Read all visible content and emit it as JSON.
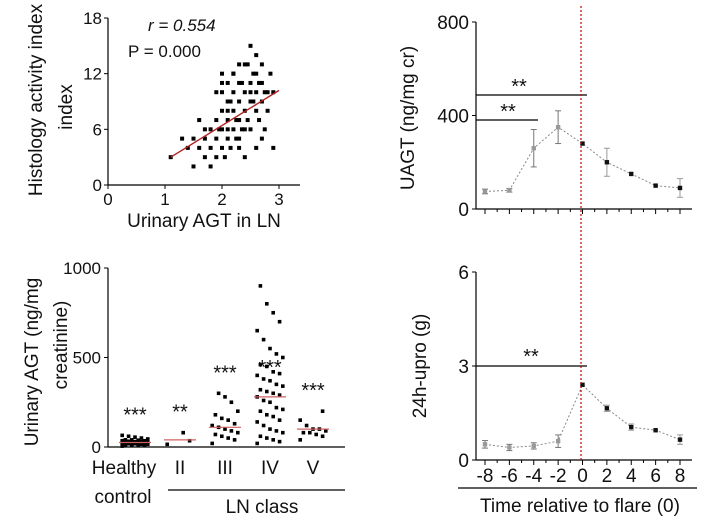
{
  "chart_data": [
    {
      "type": "scatter",
      "ylabel": "Histology activity index",
      "xlabel": "Urinary AGT in LN",
      "xlim": [
        0,
        3.2
      ],
      "ylim": [
        0,
        18
      ],
      "xticks": [
        "0",
        "1",
        "2",
        "3"
      ],
      "yticks": [
        "0",
        "6",
        "12",
        "18"
      ],
      "stat_r": "r = 0.554",
      "stat_p": "P = 0.000",
      "regression": {
        "x1": 1.1,
        "y1": 3,
        "x2": 3.0,
        "y2": 10.2
      },
      "points": [
        [
          1.1,
          3
        ],
        [
          1.3,
          5
        ],
        [
          1.4,
          4
        ],
        [
          1.5,
          2
        ],
        [
          1.5,
          5
        ],
        [
          1.6,
          4
        ],
        [
          1.6,
          7
        ],
        [
          1.7,
          3
        ],
        [
          1.7,
          5
        ],
        [
          1.8,
          4
        ],
        [
          1.8,
          6
        ],
        [
          1.8,
          2
        ],
        [
          1.9,
          5
        ],
        [
          1.9,
          7
        ],
        [
          1.9,
          3
        ],
        [
          2.0,
          6
        ],
        [
          2.0,
          8
        ],
        [
          2.0,
          4
        ],
        [
          2.0,
          10
        ],
        [
          2.0,
          12
        ],
        [
          2.1,
          7
        ],
        [
          2.1,
          5
        ],
        [
          2.1,
          9
        ],
        [
          2.1,
          6
        ],
        [
          2.1,
          11
        ],
        [
          2.15,
          4
        ],
        [
          2.2,
          8
        ],
        [
          2.2,
          6
        ],
        [
          2.2,
          10
        ],
        [
          2.2,
          12
        ],
        [
          2.25,
          7
        ],
        [
          2.3,
          5
        ],
        [
          2.3,
          9
        ],
        [
          2.3,
          7
        ],
        [
          2.3,
          11
        ],
        [
          2.35,
          6
        ],
        [
          2.4,
          8
        ],
        [
          2.4,
          10
        ],
        [
          2.4,
          13
        ],
        [
          2.4,
          3
        ],
        [
          2.45,
          7
        ],
        [
          2.5,
          9
        ],
        [
          2.5,
          11
        ],
        [
          2.5,
          15
        ],
        [
          2.5,
          6
        ],
        [
          2.55,
          12
        ],
        [
          2.6,
          8
        ],
        [
          2.6,
          10
        ],
        [
          2.6,
          14
        ],
        [
          2.6,
          4
        ],
        [
          2.65,
          7
        ],
        [
          2.7,
          9
        ],
        [
          2.7,
          11
        ],
        [
          2.7,
          13
        ],
        [
          2.75,
          6
        ],
        [
          2.8,
          10
        ],
        [
          2.8,
          8
        ],
        [
          2.85,
          12
        ],
        [
          2.9,
          10
        ],
        [
          2.9,
          4
        ],
        [
          1.9,
          10
        ],
        [
          2.0,
          11
        ],
        [
          2.2,
          12
        ],
        [
          2.3,
          13
        ],
        [
          2.1,
          8
        ],
        [
          2.5,
          10
        ],
        [
          2.6,
          12
        ],
        [
          2.7,
          5
        ],
        [
          2.4,
          6
        ],
        [
          2.3,
          4
        ],
        [
          1.7,
          6
        ],
        [
          2.05,
          3
        ],
        [
          2.55,
          9
        ],
        [
          2.65,
          11
        ],
        [
          2.45,
          13
        ],
        [
          2.15,
          9
        ],
        [
          2.35,
          11
        ],
        [
          2.75,
          10
        ],
        [
          1.95,
          6
        ],
        [
          2.25,
          5
        ]
      ]
    },
    {
      "type": "scatter",
      "ylabel_line1": "Urinary AGT (ng/mg",
      "ylabel_line2": "creatinine)",
      "ylim": [
        0,
        1000
      ],
      "yticks": [
        "0",
        "500",
        "1000"
      ],
      "categories": [
        "Healthy",
        "II",
        "III",
        "IV",
        "V"
      ],
      "category_sub": "control",
      "group_label": "LN class",
      "significance": [
        "***",
        "**",
        "***",
        "***",
        "***"
      ],
      "medians": [
        25,
        40,
        110,
        280,
        100
      ],
      "groups": [
        [
          5,
          8,
          10,
          12,
          15,
          18,
          20,
          22,
          25,
          28,
          30,
          32,
          35,
          38,
          40,
          45,
          50,
          55,
          60,
          65,
          20,
          15,
          10,
          30,
          35,
          40,
          25,
          18
        ],
        [
          15,
          35,
          80
        ],
        [
          20,
          40,
          60,
          80,
          100,
          110,
          120,
          150,
          180,
          200,
          250,
          280,
          300,
          90,
          70,
          50,
          130,
          160
        ],
        [
          20,
          40,
          60,
          80,
          100,
          120,
          150,
          180,
          200,
          220,
          250,
          280,
          300,
          320,
          350,
          380,
          400,
          420,
          450,
          500,
          550,
          600,
          650,
          700,
          750,
          800,
          900,
          30,
          50,
          90,
          140,
          170,
          210,
          260,
          290,
          310,
          340,
          370,
          410,
          460,
          520
        ],
        [
          40,
          60,
          80,
          100,
          120,
          150,
          200,
          80,
          100,
          70,
          90
        ]
      ]
    },
    {
      "type": "line",
      "ylabel": "UAGT (ng/mg cr)",
      "ylim": [
        0,
        800
      ],
      "yticks": [
        "0",
        "400",
        "800"
      ],
      "x": [
        -8,
        -6,
        -4,
        -2,
        0,
        2,
        4,
        6,
        8
      ],
      "values": [
        75,
        80,
        260,
        350,
        280,
        200,
        150,
        100,
        90
      ],
      "errors": [
        10,
        8,
        80,
        70,
        0,
        60,
        0,
        0,
        40
      ],
      "significance": [
        "**",
        "**"
      ],
      "vline_x": 0,
      "vline_color": "#c00000"
    },
    {
      "type": "line",
      "ylabel": "24h-upro (g)",
      "ylim": [
        0,
        6
      ],
      "yticks": [
        "0",
        "3",
        "6"
      ],
      "x": [
        -8,
        -6,
        -4,
        -2,
        0,
        2,
        4,
        6,
        8
      ],
      "xticks": [
        "-8",
        "-6",
        "-4",
        "-2",
        "0",
        "2",
        "4",
        "6",
        "8"
      ],
      "xlabel": "Time relative to flare (0)",
      "values": [
        0.5,
        0.4,
        0.45,
        0.6,
        2.4,
        1.65,
        1.05,
        0.95,
        0.65
      ],
      "errors": [
        0.12,
        0.1,
        0.1,
        0.2,
        0,
        0.1,
        0.1,
        0,
        0.15
      ],
      "significance": [
        "**"
      ],
      "vline_x": 0,
      "vline_color": "#c00000"
    }
  ]
}
